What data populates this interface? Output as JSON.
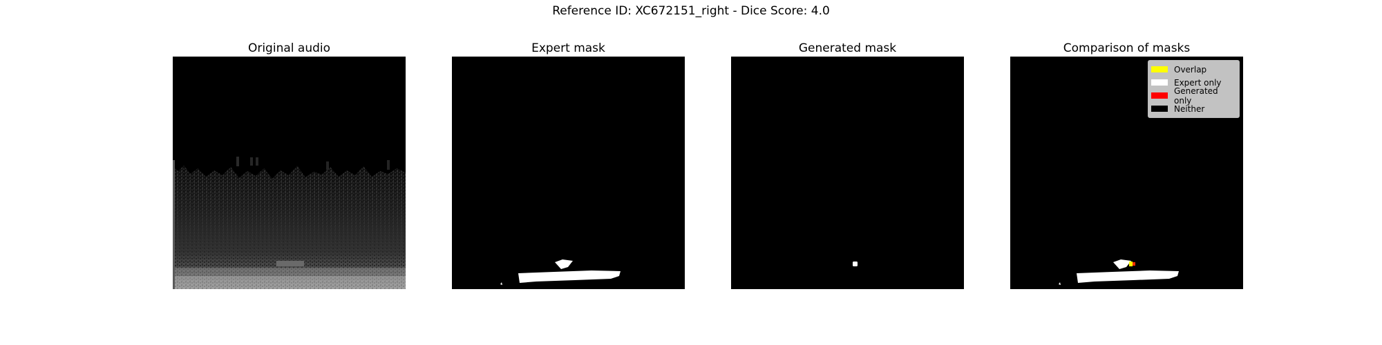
{
  "figure": {
    "title": "Reference ID: XC672151_right - Dice Score: 4.0"
  },
  "panels": [
    {
      "title": "Original audio"
    },
    {
      "title": "Expert mask"
    },
    {
      "title": "Generated mask"
    },
    {
      "title": "Comparison of masks"
    }
  ],
  "legend": {
    "placement": "top-right",
    "items": [
      {
        "label": "Overlap",
        "color": "#ffff00"
      },
      {
        "label": "Expert only",
        "color": "#ffffff"
      },
      {
        "label": "Generated only",
        "color": "#ff0000"
      },
      {
        "label": "Neither",
        "color": "#000000"
      }
    ]
  },
  "colors": {
    "background": "#000000",
    "mask": "#ffffff"
  }
}
